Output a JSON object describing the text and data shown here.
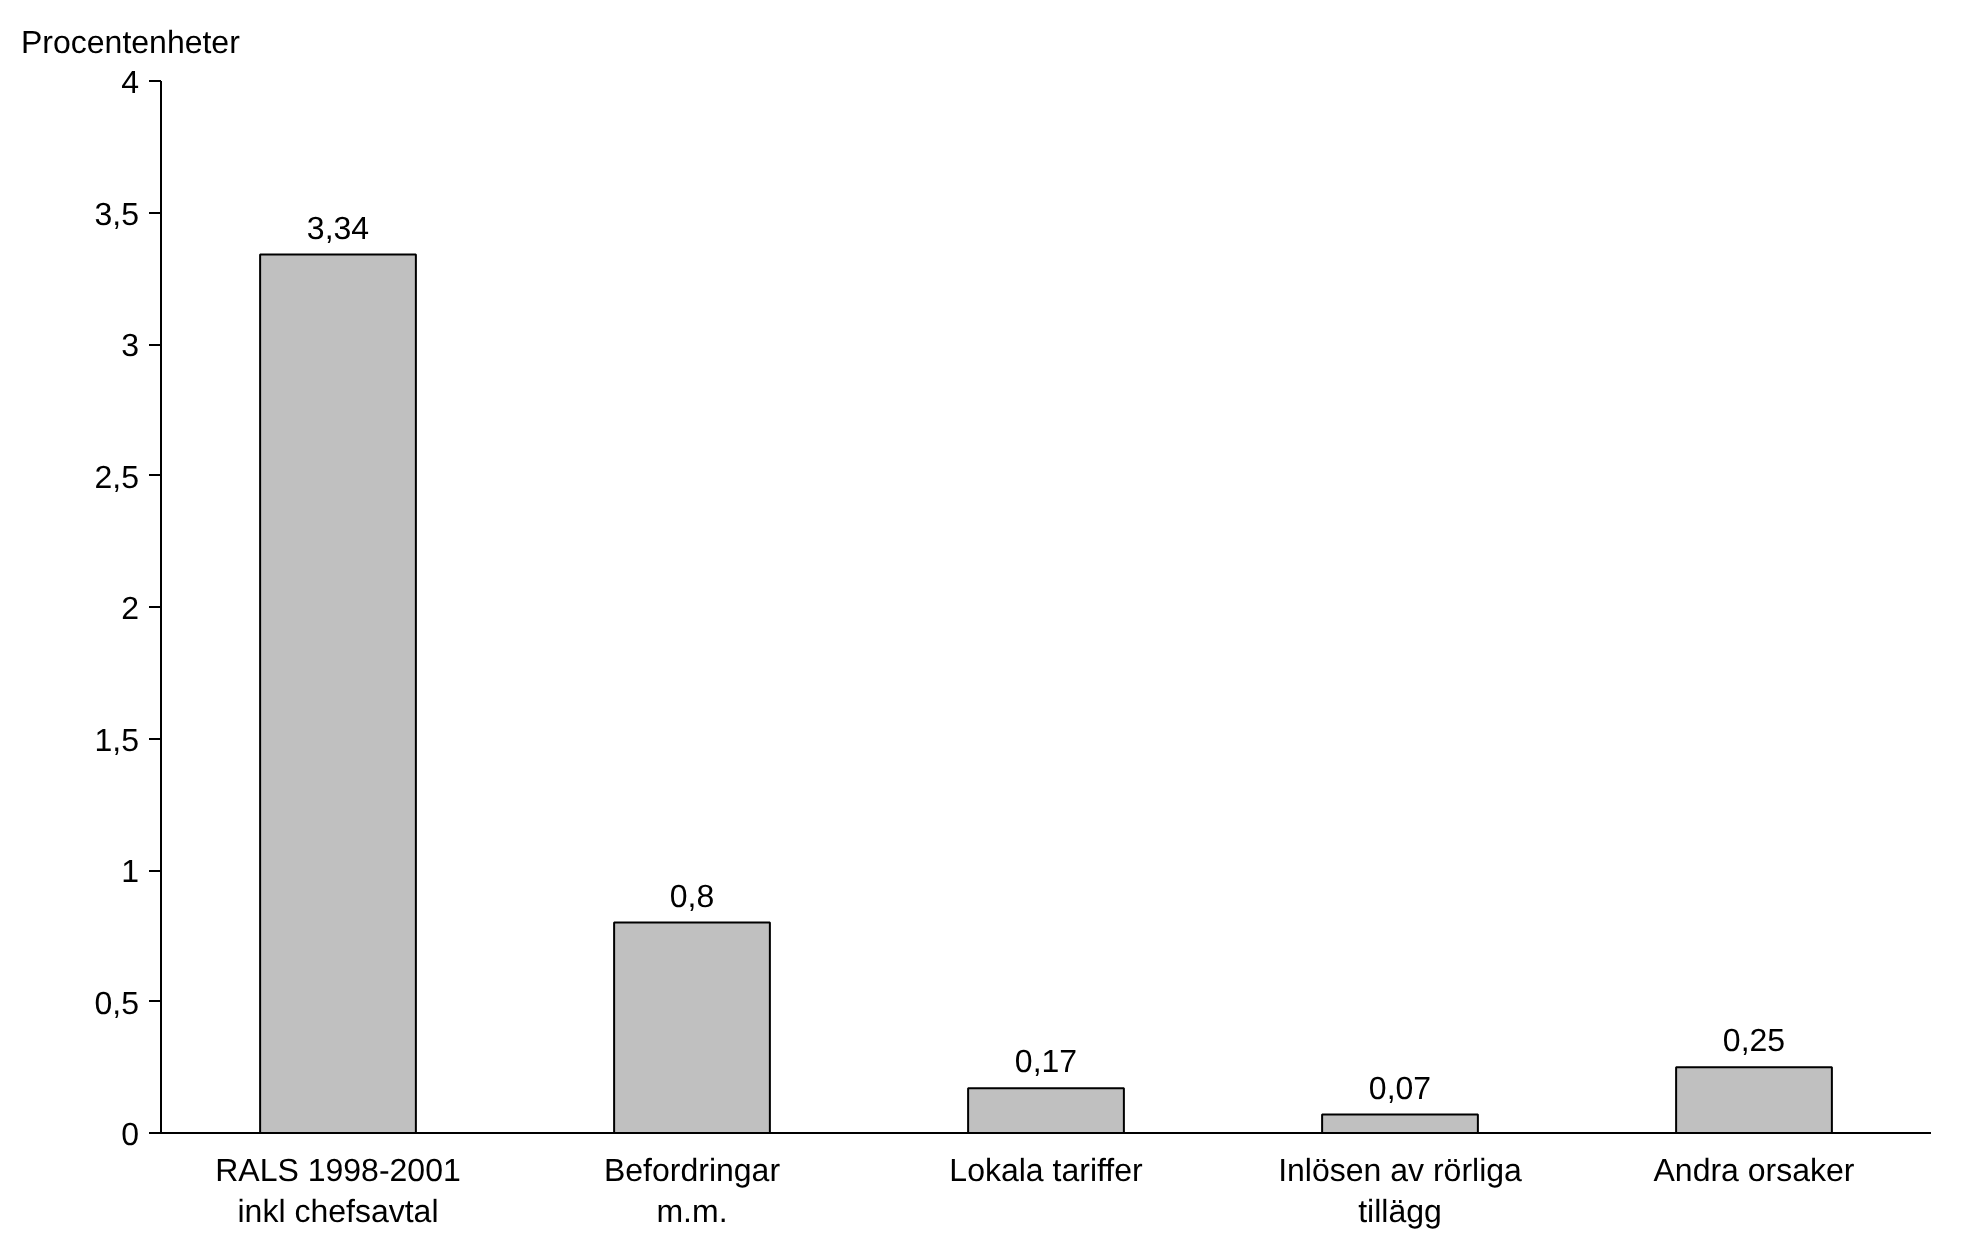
{
  "chart_data": {
    "type": "bar",
    "ylabel": "Procentenheter",
    "categories": [
      "RALS 1998-2001\ninkl chefsavtal",
      "Befordringar\nm.m.",
      "Lokala tariffer",
      "Inlösen av rörliga\ntillägg",
      "Andra orsaker"
    ],
    "values": [
      3.34,
      0.8,
      0.17,
      0.07,
      0.25
    ],
    "value_labels": [
      "3,34",
      "0,8",
      "0,17",
      "0,07",
      "0,25"
    ],
    "color": "#c0c0c0",
    "ylim": [
      0,
      4
    ],
    "yticks": [
      0,
      {
        "value": 0.5,
        "label": "0,5"
      },
      1,
      {
        "value": 1.5,
        "label": "1,5"
      },
      2,
      {
        "value": 2.5,
        "label": "2,5"
      },
      3,
      {
        "value": 3.5,
        "label": "3,5"
      },
      4
    ],
    "grid": false
  }
}
